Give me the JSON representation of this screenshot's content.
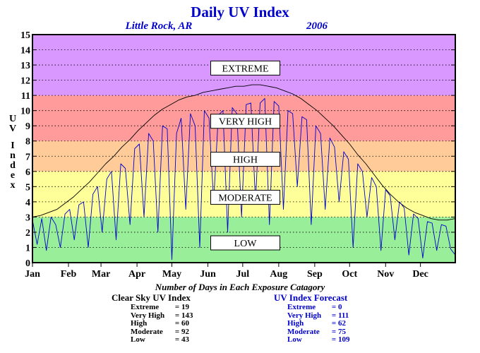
{
  "header": {
    "title": "Daily UV Index",
    "location": "Little Rock, AR",
    "year": "2006"
  },
  "colors": {
    "title": "#0000cc",
    "extreme_band": "#d998ff",
    "very_high_band": "#ff9b9b",
    "high_band": "#ffcc99",
    "moderate_band": "#ffff99",
    "low_band": "#99ee99",
    "clear_sky_line": "#000000",
    "forecast_line": "#0000cc"
  },
  "chart_data": {
    "type": "line",
    "ylabel": "U V I n d e x",
    "ylim": [
      0,
      15
    ],
    "yticks": [
      "0",
      "1",
      "2",
      "3",
      "4",
      "5",
      "6",
      "7",
      "8",
      "9",
      "10",
      "11",
      "12",
      "13",
      "14",
      "15"
    ],
    "xlim": [
      1,
      365
    ],
    "month_labels": [
      "Jan",
      "Feb",
      "Mar",
      "Apr",
      "May",
      "Jun",
      "Jul",
      "Aug",
      "Sep",
      "Oct",
      "Nov",
      "Dec"
    ],
    "month_start_days": [
      1,
      32,
      60,
      91,
      121,
      152,
      182,
      213,
      244,
      274,
      305,
      335
    ],
    "grid": "dotted horizontal",
    "bands": [
      {
        "name": "LOW",
        "from": 0,
        "to": 3
      },
      {
        "name": "MODERATE",
        "from": 3,
        "to": 6
      },
      {
        "name": "HIGH",
        "from": 6,
        "to": 8
      },
      {
        "name": "VERY HIGH",
        "from": 8,
        "to": 11
      },
      {
        "name": "EXTREME",
        "from": 11,
        "to": 15
      }
    ],
    "band_labels": [
      {
        "text": "EXTREME",
        "y": 12.8
      },
      {
        "text": "VERY HIGH",
        "y": 9.3
      },
      {
        "text": "HIGH",
        "y": 6.8
      },
      {
        "text": "MODERATE",
        "y": 4.3
      },
      {
        "text": "LOW",
        "y": 1.3
      }
    ],
    "series": [
      {
        "key": "clear_sky",
        "x": [
          1,
          8,
          15,
          22,
          29,
          36,
          43,
          50,
          57,
          64,
          71,
          78,
          85,
          92,
          99,
          106,
          113,
          120,
          127,
          134,
          141,
          148,
          155,
          162,
          169,
          176,
          183,
          190,
          197,
          204,
          211,
          218,
          225,
          232,
          239,
          246,
          253,
          260,
          267,
          274,
          281,
          288,
          295,
          302,
          309,
          316,
          323,
          330,
          337,
          344,
          351,
          358,
          365
        ],
        "y": [
          3.0,
          3.1,
          3.3,
          3.5,
          3.9,
          4.3,
          4.8,
          5.3,
          5.9,
          6.5,
          7.0,
          7.6,
          8.1,
          8.7,
          9.2,
          9.7,
          10.1,
          10.4,
          10.7,
          10.9,
          11.0,
          11.2,
          11.3,
          11.4,
          11.5,
          11.6,
          11.6,
          11.7,
          11.7,
          11.6,
          11.5,
          11.3,
          11.1,
          10.8,
          10.4,
          10.0,
          9.5,
          9.0,
          8.4,
          7.8,
          7.1,
          6.5,
          5.8,
          5.1,
          4.5,
          4.0,
          3.6,
          3.3,
          3.1,
          2.9,
          2.8,
          2.8,
          2.9
        ]
      },
      {
        "key": "forecast",
        "x": [
          1,
          5,
          9,
          13,
          17,
          21,
          25,
          29,
          33,
          37,
          41,
          45,
          49,
          53,
          57,
          61,
          65,
          69,
          73,
          77,
          81,
          85,
          89,
          93,
          97,
          101,
          105,
          109,
          113,
          117,
          121,
          125,
          129,
          133,
          137,
          141,
          145,
          149,
          153,
          157,
          161,
          165,
          169,
          173,
          177,
          181,
          185,
          189,
          193,
          197,
          201,
          205,
          209,
          213,
          217,
          221,
          225,
          229,
          233,
          237,
          241,
          245,
          249,
          253,
          257,
          261,
          265,
          269,
          273,
          277,
          281,
          285,
          289,
          293,
          297,
          301,
          305,
          309,
          313,
          317,
          321,
          325,
          329,
          333,
          337,
          341,
          345,
          349,
          353,
          357,
          361,
          365
        ],
        "y": [
          2.8,
          1.2,
          2.9,
          0.8,
          3.0,
          2.5,
          1.0,
          3.2,
          3.5,
          1.5,
          3.8,
          4.0,
          1.0,
          4.5,
          5.0,
          2.0,
          5.5,
          6.0,
          1.5,
          6.5,
          6.2,
          2.5,
          7.5,
          7.8,
          3.0,
          8.5,
          8.0,
          2.0,
          9.0,
          8.8,
          0.2,
          8.5,
          9.5,
          3.5,
          9.8,
          9.0,
          1.0,
          10.0,
          9.5,
          4.0,
          9.7,
          10.0,
          2.0,
          10.2,
          9.8,
          3.0,
          10.4,
          10.5,
          4.0,
          10.5,
          10.8,
          2.5,
          10.6,
          10.3,
          3.5,
          10.0,
          9.8,
          5.0,
          9.6,
          9.4,
          2.5,
          9.0,
          8.5,
          3.5,
          8.2,
          7.6,
          4.0,
          7.3,
          6.8,
          1.0,
          6.5,
          6.0,
          3.0,
          5.6,
          5.0,
          0.8,
          4.8,
          4.4,
          1.5,
          4.0,
          3.6,
          0.5,
          3.2,
          2.9,
          0.3,
          2.7,
          2.6,
          0.8,
          2.5,
          2.4,
          0.9,
          0.5
        ]
      }
    ]
  },
  "counts": {
    "title": "Number of Days in Each Exposure Catagory",
    "clear_sky": {
      "heading": "Clear Sky UV Index",
      "rows": [
        {
          "label": "Extreme",
          "value": "19"
        },
        {
          "label": "Very High",
          "value": "143"
        },
        {
          "label": "High",
          "value": "60"
        },
        {
          "label": "Moderate",
          "value": "92"
        },
        {
          "label": "Low",
          "value": "43"
        }
      ]
    },
    "forecast": {
      "heading": "UV Index Forecast",
      "rows": [
        {
          "label": "Extreme",
          "value": "0"
        },
        {
          "label": "Very High",
          "value": "111"
        },
        {
          "label": "High",
          "value": "62"
        },
        {
          "label": "Moderate",
          "value": "75"
        },
        {
          "label": "Low",
          "value": "109"
        }
      ]
    }
  }
}
